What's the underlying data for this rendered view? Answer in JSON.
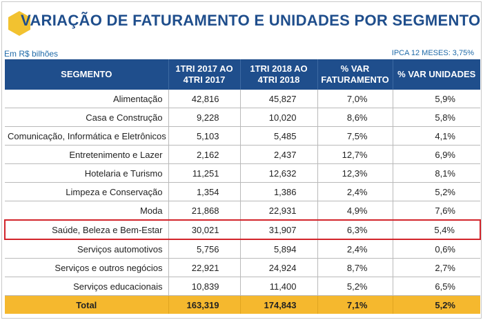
{
  "header": {
    "title": "VARIAÇÃO DE FATURAMENTO E UNIDADES POR SEGMENTO",
    "unit_note": "Em R$ bilhões",
    "ipca_note": "IPCA 12 MESES: 3,75%"
  },
  "colors": {
    "accent": "#1f4e8c",
    "total": "#f5b82e",
    "highlight": "#d2232a",
    "logo": "#f2c230"
  },
  "table": {
    "columns": [
      "SEGMENTO",
      "1TRI 2017 AO 4TRI 2017",
      "1TRI 2018 AO 4TRI 2018",
      "% VAR FATURAMENTO",
      "% VAR UNIDADES"
    ],
    "rows": [
      [
        "Alimentação",
        "42,816",
        "45,827",
        "7,0%",
        "5,9%"
      ],
      [
        "Casa e Construção",
        "9,228",
        "10,020",
        "8,6%",
        "5,8%"
      ],
      [
        "Comunicação, Informática e Eletrônicos",
        "5,103",
        "5,485",
        "7,5%",
        "4,1%"
      ],
      [
        "Entretenimento e Lazer",
        "2,162",
        "2,437",
        "12,7%",
        "6,9%"
      ],
      [
        "Hotelaria e Turismo",
        "11,251",
        "12,632",
        "12,3%",
        "8,1%"
      ],
      [
        "Limpeza e Conservação",
        "1,354",
        "1,386",
        "2,4%",
        "5,2%"
      ],
      [
        "Moda",
        "21,868",
        "22,931",
        "4,9%",
        "7,6%"
      ],
      [
        "Saúde, Beleza e Bem-Estar",
        "30,021",
        "31,907",
        "6,3%",
        "5,4%"
      ],
      [
        "Serviços automotivos",
        "5,756",
        "5,894",
        "2,4%",
        "0,6%"
      ],
      [
        "Serviços e outros negócios",
        "22,921",
        "24,924",
        "8,7%",
        "2,7%"
      ],
      [
        "Serviços educacionais",
        "10,839",
        "11,400",
        "5,2%",
        "6,5%"
      ]
    ],
    "total": [
      "Total",
      "163,319",
      "174,843",
      "7,1%",
      "5,2%"
    ],
    "highlighted_row": "Saúde, Beleza e Bem-Estar"
  }
}
